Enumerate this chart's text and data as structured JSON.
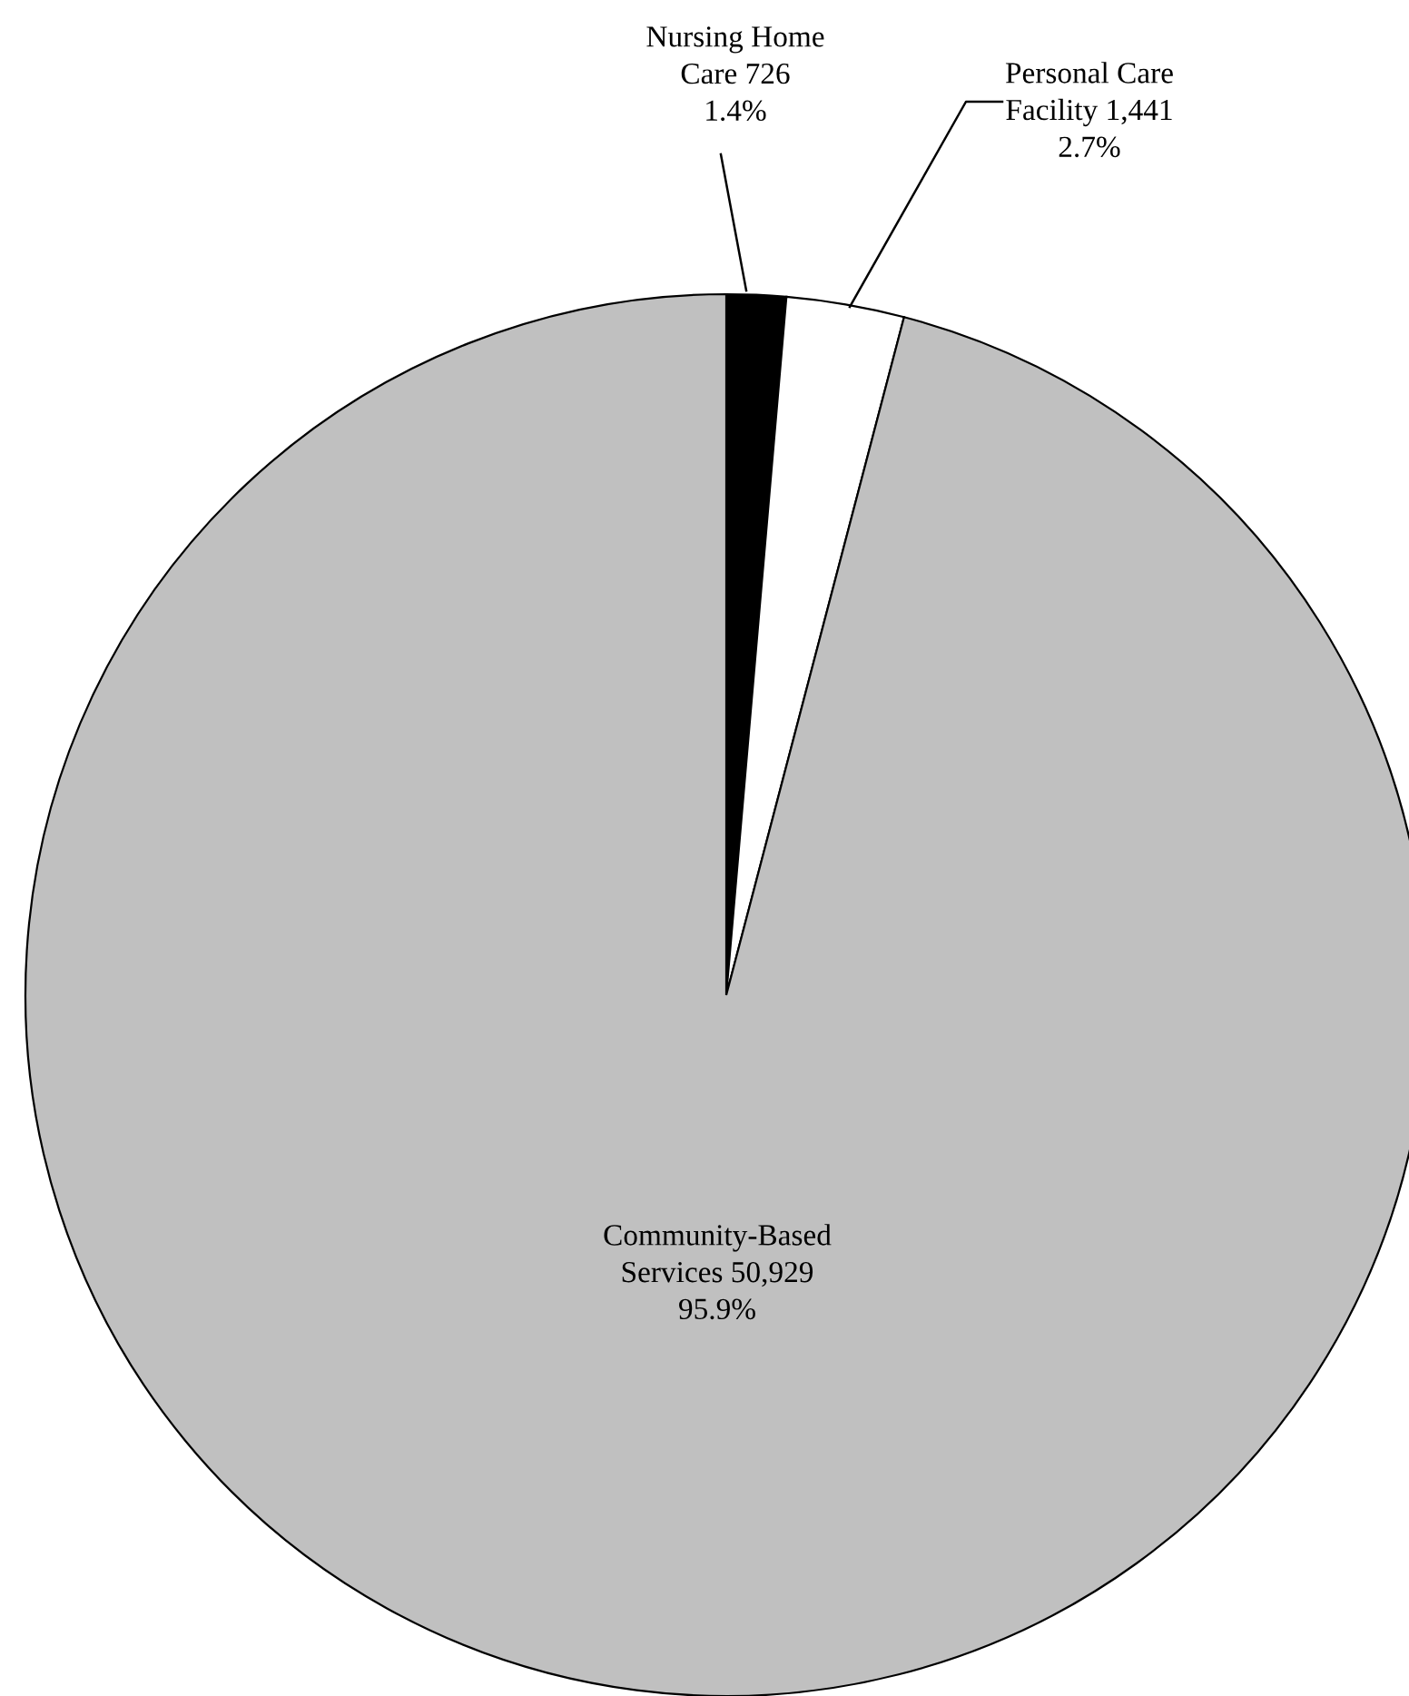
{
  "chart_data": {
    "type": "pie",
    "categories": [
      "Nursing Home\nCare",
      "Personal Care\nFacility",
      "Community-Based\nServices"
    ],
    "values": [
      726,
      1441,
      50929
    ],
    "value_labels": [
      "726\n1.4%",
      "1,441\n2.7%",
      "50,929\n95.9%"
    ],
    "colors": [
      "#000000",
      "#ffffff",
      "#c0c0c0"
    ]
  }
}
